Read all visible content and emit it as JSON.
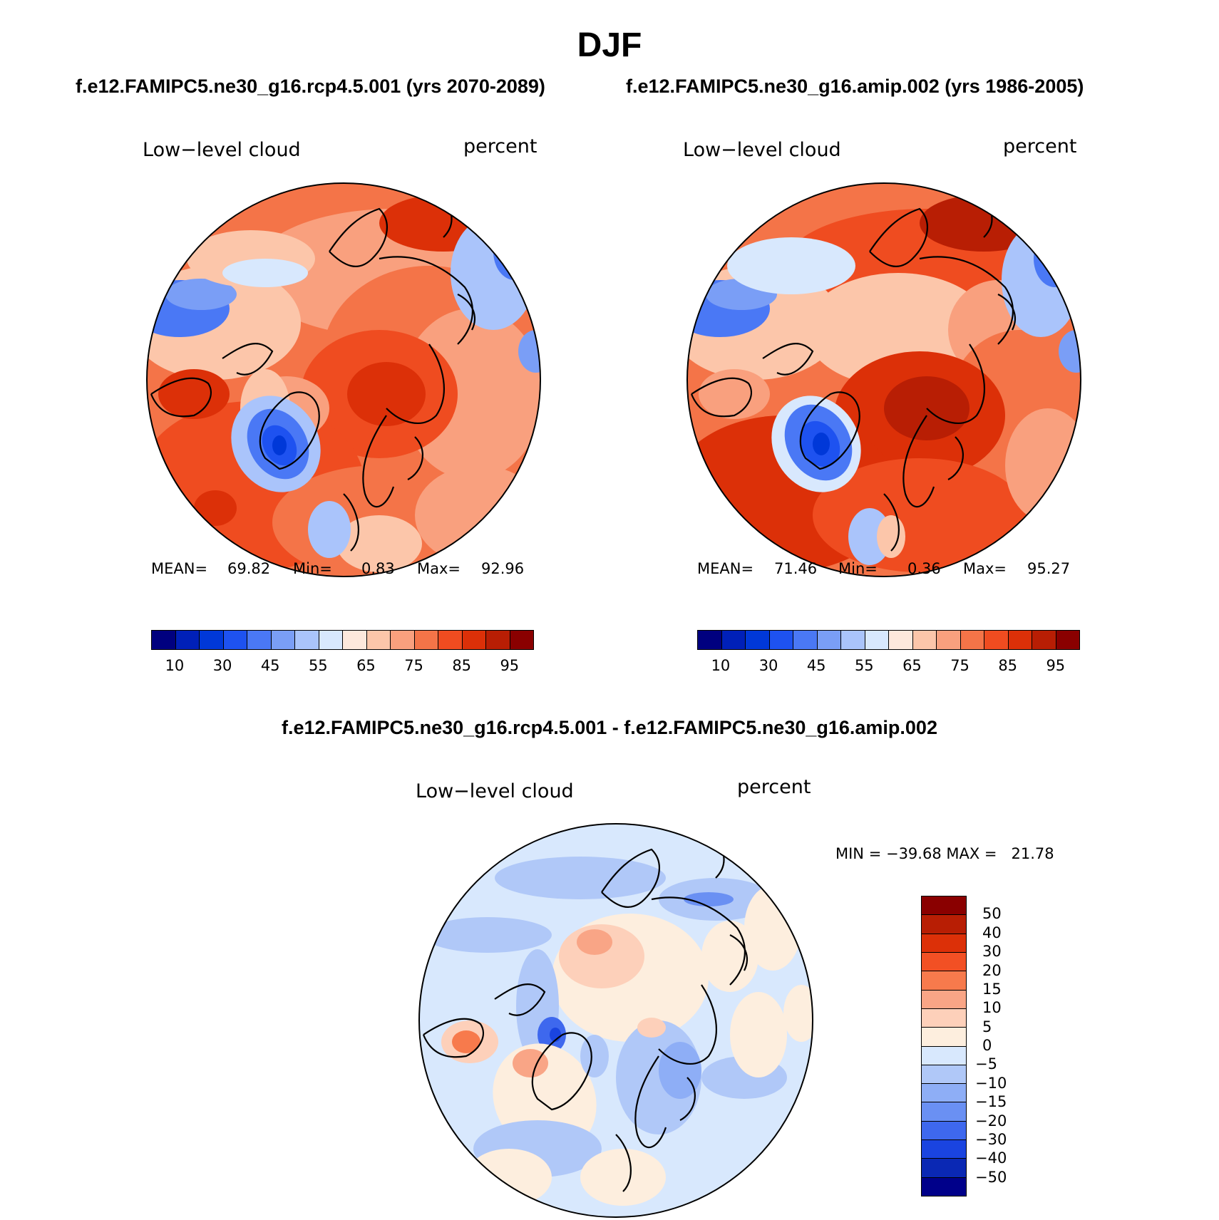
{
  "figure": {
    "season": "DJF",
    "subtitle_left": "f.e12.FAMIPC5.ne30_g16.rcp4.5.001 (yrs 2070-2089)",
    "subtitle_right": "f.e12.FAMIPC5.ne30_g16.amip.002 (yrs 1986-2005)",
    "diff_title": "f.e12.FAMIPC5.ne30_g16.rcp4.5.001 - f.e12.FAMIPC5.ne30_g16.amip.002"
  },
  "panels": [
    {
      "variable": "Low−level cloud",
      "units": "percent",
      "mean_label": "MEAN=",
      "mean": "69.82",
      "min_label": "Min=",
      "min": "0.83",
      "max_label": "Max=",
      "max": "92.96"
    },
    {
      "variable": "Low−level cloud",
      "units": "percent",
      "mean_label": "MEAN=",
      "mean": "71.46",
      "min_label": "Min=",
      "min": "0.36",
      "max_label": "Max=",
      "max": "95.27"
    },
    {
      "variable": "Low−level cloud",
      "units": "percent",
      "minmax_text": "MIN = −39.68 MAX =   21.78"
    }
  ],
  "colorbar_abs": {
    "colors": [
      "#00007f",
      "#0020b8",
      "#0038d8",
      "#1e52f0",
      "#4a78f5",
      "#7a9ef6",
      "#aac4fb",
      "#d8e8fd",
      "#fde8dc",
      "#fcc6aa",
      "#f9a07e",
      "#f47448",
      "#ef4c20",
      "#dc3008",
      "#b81e04",
      "#8a0000"
    ],
    "tick_labels": [
      "10",
      "30",
      "45",
      "55",
      "65",
      "75",
      "85",
      "95"
    ]
  },
  "colorbar_diff": {
    "colors": [
      "#8a0000",
      "#b81e04",
      "#dc3008",
      "#f25024",
      "#f77a4c",
      "#f9a586",
      "#fdd0ba",
      "#fdeede",
      "#d8e8fd",
      "#b0c8f8",
      "#8eaef6",
      "#6a90f3",
      "#3e68ee",
      "#1a44e0",
      "#0a28b4",
      "#00008a"
    ],
    "tick_labels": [
      "50",
      "40",
      "30",
      "20",
      "15",
      "10",
      "5",
      "0",
      "−5",
      "−10",
      "−15",
      "−20",
      "−30",
      "−40",
      "−50"
    ]
  },
  "colors": {
    "land_outline": "#000000",
    "map_border": "#000000"
  }
}
